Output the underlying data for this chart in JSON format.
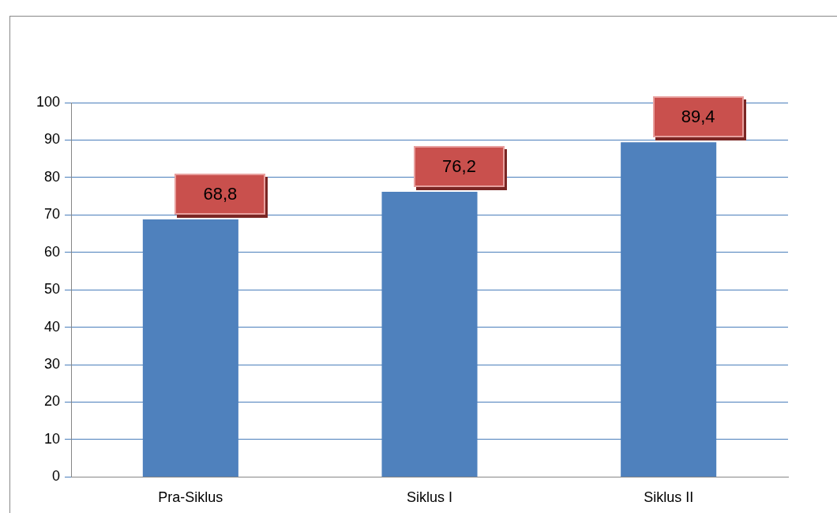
{
  "chart_data": {
    "type": "bar",
    "categories": [
      "Pra-Siklus",
      "Siklus I",
      "Siklus II"
    ],
    "values": [
      68.8,
      76.2,
      89.4
    ],
    "value_labels": [
      "68,8",
      "76,2",
      "89,4"
    ],
    "color": "#4f81bd",
    "ylim": [
      0,
      100
    ],
    "yticks": [
      0,
      10,
      20,
      30,
      40,
      50,
      60,
      70,
      80,
      90,
      100
    ],
    "grid": "y",
    "legend": false
  }
}
